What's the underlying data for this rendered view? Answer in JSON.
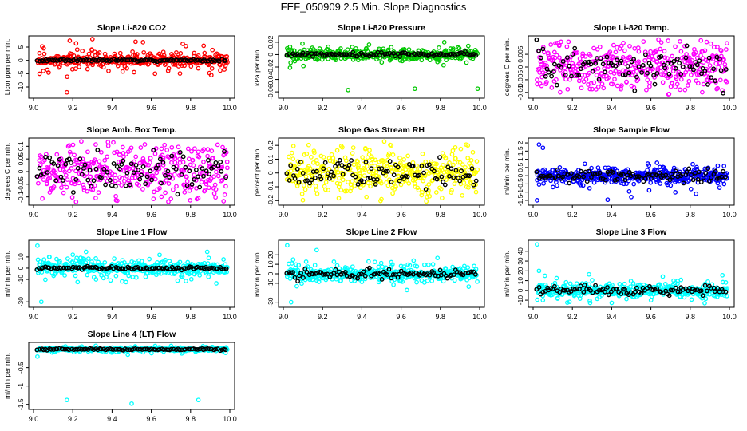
{
  "title": "FEF_050909  2.5 Min. Slope Diagnostics",
  "chart_data": [
    {
      "type": "scatter",
      "title": "Slope Li-820 CO2",
      "ylabel": "Licor ppm per min.",
      "ylim": [
        -13,
        8
      ],
      "yticks": [
        -10,
        -5,
        0,
        5
      ],
      "xlim": [
        9.0,
        10.0
      ],
      "xticks": [
        9.0,
        9.2,
        9.4,
        9.6,
        9.8,
        10.0
      ],
      "color": "#ff0000",
      "spread": 2.5,
      "dense": 0.8,
      "outliers": [
        [
          9.17,
          -12
        ],
        [
          9.52,
          7
        ],
        [
          9.3,
          8
        ],
        [
          9.05,
          -4
        ]
      ],
      "black_spread": 0.4
    },
    {
      "type": "scatter",
      "title": "Slope Li-820 Pressure",
      "ylabel": "kPa per min.",
      "ylim": [
        -0.065,
        0.025
      ],
      "yticks": [
        -0.06,
        -0.04,
        -0.02,
        0,
        0.02
      ],
      "xlim": [
        9.0,
        10.0
      ],
      "xticks": [
        9.0,
        9.2,
        9.4,
        9.6,
        9.8,
        10.0
      ],
      "color": "#00c800",
      "spread": 0.008,
      "dense": 0.004,
      "outliers": [
        [
          9.33,
          -0.057
        ],
        [
          9.67,
          -0.055
        ],
        [
          9.99,
          -0.055
        ],
        [
          9.82,
          0.02
        ],
        [
          9.02,
          0.01
        ]
      ],
      "black_spread": 0.003
    },
    {
      "type": "scatter",
      "title": "Slope Li-820 Temp.",
      "ylabel": "degrees C per min.",
      "ylim": [
        -0.011,
        0.011
      ],
      "yticks": [
        -0.01,
        -0.005,
        0,
        0.005
      ],
      "xlim": [
        9.0,
        10.0
      ],
      "xticks": [
        9.0,
        9.2,
        9.4,
        9.6,
        9.8,
        10.0
      ],
      "color": "#ff00ff",
      "spread": 0.009,
      "dense": 0.005,
      "outliers": [],
      "black_spread": 0.006
    },
    {
      "type": "scatter",
      "title": "Slope Amb. Box Temp.",
      "ylabel": "degrees C per min.",
      "ylim": [
        -0.12,
        0.12
      ],
      "yticks": [
        -0.1,
        -0.05,
        0,
        0.05,
        0.1
      ],
      "xlim": [
        9.0,
        10.0
      ],
      "xticks": [
        9.0,
        9.2,
        9.4,
        9.6,
        9.8,
        10.0
      ],
      "color": "#ff00ff",
      "spread": 0.1,
      "dense": 0.05,
      "outliers": [],
      "black_spread": 0.06
    },
    {
      "type": "scatter",
      "title": "Slope Gas Stream RH",
      "ylabel": "percent per min.",
      "ylim": [
        -0.21,
        0.23
      ],
      "yticks": [
        -0.2,
        -0.1,
        0,
        0.1,
        0.2
      ],
      "xlim": [
        9.0,
        10.0
      ],
      "xticks": [
        9.0,
        9.2,
        9.4,
        9.6,
        9.8,
        10.0
      ],
      "color": "#ffff00",
      "spread": 0.15,
      "dense": 0.07,
      "outliers": [
        [
          9.55,
          0.2
        ],
        [
          9.94,
          0.2
        ],
        [
          9.5,
          -0.19
        ]
      ],
      "black_spread": 0.08
    },
    {
      "type": "scatter",
      "title": "Slope Sample Flow",
      "ylabel": "ml/min per min.",
      "ylim": [
        -1.6,
        2.1
      ],
      "yticks": [
        -1.5,
        -1,
        -0.5,
        0,
        0.5,
        1,
        1.5,
        2
      ],
      "xlim": [
        9.0,
        10.0
      ],
      "xticks": [
        9.0,
        9.2,
        9.4,
        9.6,
        9.8,
        10.0
      ],
      "color": "#0000ff",
      "spread": 0.45,
      "dense": 0.2,
      "outliers": [
        [
          9.03,
          1.9
        ],
        [
          9.05,
          1.7
        ],
        [
          9.02,
          -1.5
        ],
        [
          9.5,
          -1.3
        ],
        [
          9.83,
          -1.1
        ]
      ],
      "black_spread": 0.3
    },
    {
      "type": "scatter",
      "title": "Slope Line 1 Flow",
      "ylabel": "ml/min per min.",
      "ylim": [
        -32,
        22
      ],
      "yticks": [
        -30,
        -10,
        0,
        10
      ],
      "xlim": [
        9.0,
        10.0
      ],
      "xticks": [
        9.0,
        9.2,
        9.4,
        9.6,
        9.8,
        10.0
      ],
      "color": "#00ffff",
      "spread": 6,
      "dense": 3,
      "outliers": [
        [
          9.02,
          20
        ],
        [
          9.04,
          -30
        ],
        [
          9.2,
          12
        ],
        [
          9.08,
          10
        ]
      ],
      "black_spread": 1
    },
    {
      "type": "scatter",
      "title": "Slope Line 2 Flow",
      "ylabel": "ml/min per min.",
      "ylim": [
        -32,
        32
      ],
      "yticks": [
        -30,
        -10,
        0,
        10,
        20
      ],
      "xlim": [
        9.0,
        10.0
      ],
      "xticks": [
        9.0,
        9.2,
        9.4,
        9.6,
        9.8,
        10.0
      ],
      "color": "#00ffff",
      "spread": 7,
      "dense": 3,
      "outliers": [
        [
          9.02,
          30
        ],
        [
          9.04,
          -30
        ],
        [
          9.17,
          25
        ],
        [
          9.05,
          15
        ]
      ],
      "black_spread": 4
    },
    {
      "type": "scatter",
      "title": "Slope Line 3 Flow",
      "ylabel": "ml/min per min.",
      "ylim": [
        -14,
        48
      ],
      "yticks": [
        -10,
        0,
        10,
        20,
        30,
        40
      ],
      "xlim": [
        9.0,
        10.0
      ],
      "xticks": [
        9.0,
        9.2,
        9.4,
        9.6,
        9.8,
        10.0
      ],
      "color": "#00ffff",
      "spread": 6,
      "dense": 3,
      "outliers": [
        [
          9.02,
          47
        ],
        [
          9.03,
          20
        ],
        [
          9.06,
          15
        ],
        [
          9.05,
          -10
        ]
      ],
      "black_spread": 4
    },
    {
      "type": "scatter",
      "title": "Slope Line 4 (LT) Flow",
      "ylabel": "ml/min per min.",
      "ylim": [
        -1.55,
        0.1
      ],
      "yticks": [
        -1.5,
        -1,
        -0.5
      ],
      "xlim": [
        9.0,
        10.0
      ],
      "xticks": [
        9.0,
        9.2,
        9.4,
        9.6,
        9.8,
        10.0
      ],
      "color": "#00ffff",
      "spread": 0.05,
      "dense": 0.02,
      "outliers": [
        [
          9.17,
          -1.38
        ],
        [
          9.5,
          -1.48
        ],
        [
          9.84,
          -1.38
        ],
        [
          9.02,
          -0.2
        ]
      ],
      "black_spread": 0.02
    }
  ]
}
